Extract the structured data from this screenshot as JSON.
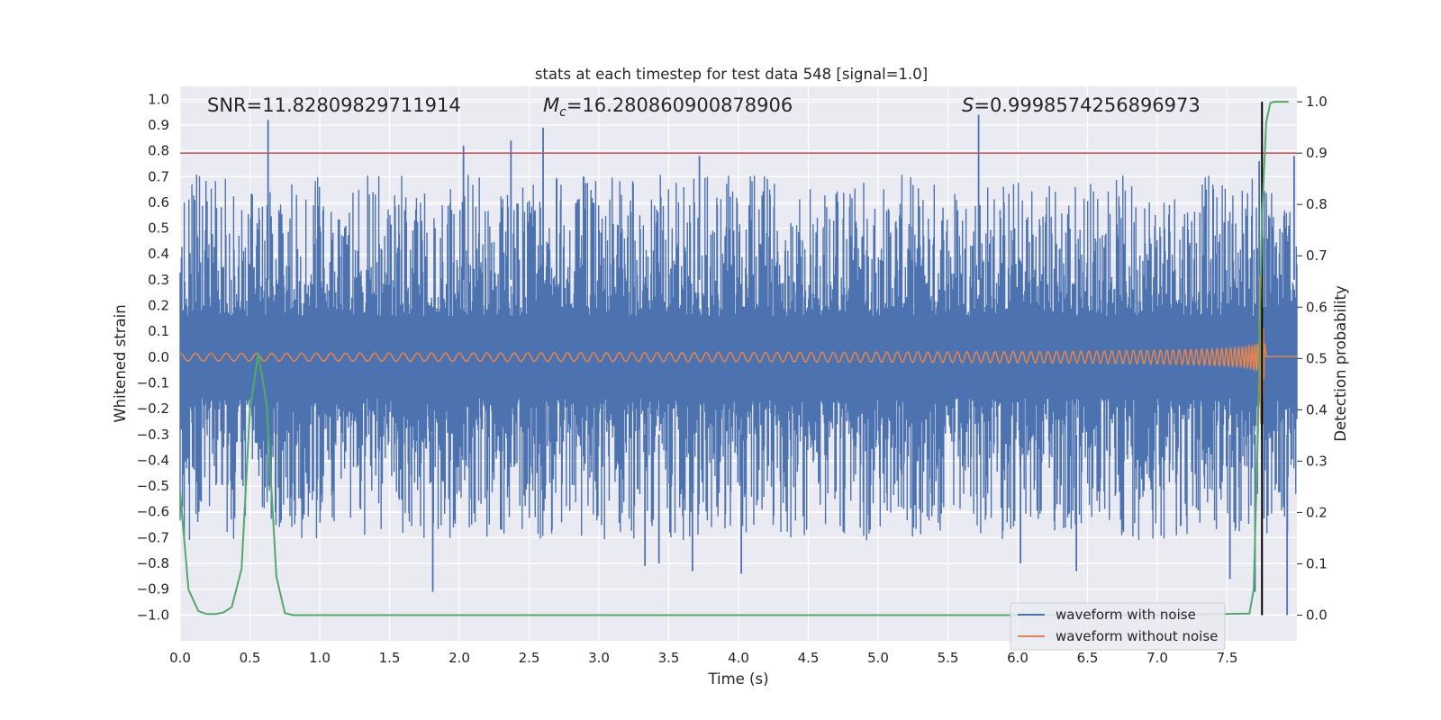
{
  "chart_data": {
    "type": "line",
    "title": "stats at each timestep for test data 548 [signal=1.0]",
    "xlabel": "Time (s)",
    "ylabel": "Whitened strain",
    "y2label": "Detection probability",
    "xlim": [
      0.0,
      8.0
    ],
    "ylim": [
      -1.1,
      1.05
    ],
    "y2lim": [
      -0.05,
      1.03
    ],
    "x_ticks": [
      "0.0",
      "0.5",
      "1.0",
      "1.5",
      "2.0",
      "2.5",
      "3.0",
      "3.5",
      "4.0",
      "4.5",
      "5.0",
      "5.5",
      "6.0",
      "6.5",
      "7.0",
      "7.5"
    ],
    "y_ticks": [
      "1.0",
      "0.9",
      "0.8",
      "0.7",
      "0.6",
      "0.5",
      "0.4",
      "0.3",
      "0.2",
      "0.1",
      "0.0",
      "-0.1",
      "-0.2",
      "-0.3",
      "-0.4",
      "-0.5",
      "-0.6",
      "-0.7",
      "-0.8",
      "-0.9",
      "-1.0"
    ],
    "y2_ticks": [
      "1.0",
      "0.9",
      "0.8",
      "0.7",
      "0.6",
      "0.5",
      "0.4",
      "0.3",
      "0.2",
      "0.1",
      "0.0"
    ],
    "grid": true,
    "legend_position": "lower-right",
    "annotations": {
      "snr": "SNR=11.82809829711914",
      "mc_symbol": "M",
      "mc_sub": "c",
      "mc_value": "=16.280860900878906",
      "s_symbol": "S",
      "s_value": "=0.9998574256896973"
    },
    "series": [
      {
        "name": "waveform with noise",
        "color": "#4c72b0",
        "axis": "left",
        "peaks": [
          {
            "x": 0.63,
            "y": 0.92
          },
          {
            "x": 2.03,
            "y": 0.82
          },
          {
            "x": 2.37,
            "y": 0.84
          },
          {
            "x": 2.6,
            "y": 0.89
          },
          {
            "x": 3.72,
            "y": 0.78
          },
          {
            "x": 5.72,
            "y": 0.94
          },
          {
            "x": 7.73,
            "y": 0.76
          },
          {
            "x": 7.98,
            "y": 0.78
          }
        ],
        "troughs": [
          {
            "x": 1.81,
            "y": -0.91
          },
          {
            "x": 3.33,
            "y": -0.81
          },
          {
            "x": 3.43,
            "y": -0.8
          },
          {
            "x": 3.67,
            "y": -0.83
          },
          {
            "x": 4.02,
            "y": -0.84
          },
          {
            "x": 6.02,
            "y": -0.8
          },
          {
            "x": 6.42,
            "y": -0.83
          },
          {
            "x": 7.52,
            "y": -0.86
          },
          {
            "x": 7.7,
            "y": -0.91
          },
          {
            "x": 7.93,
            "y": -1.0
          }
        ]
      },
      {
        "name": "waveform without noise",
        "color": "#dd8452",
        "axis": "left",
        "base_amplitude": 0.015,
        "final_amplitude": 0.35,
        "merger_time": 7.77
      },
      {
        "name": "detection probability",
        "color": "#55a868",
        "axis": "right",
        "x": [
          0.0,
          0.06,
          0.13,
          0.19,
          0.25,
          0.31,
          0.37,
          0.44,
          0.5,
          0.56,
          0.62,
          0.69,
          0.75,
          0.81,
          7.0,
          7.66,
          7.69,
          7.72,
          7.75,
          7.78,
          7.81,
          7.84,
          7.87,
          7.94
        ],
        "y": [
          0.24,
          0.05,
          0.008,
          0.002,
          0.002,
          0.005,
          0.016,
          0.09,
          0.4,
          0.51,
          0.41,
          0.075,
          0.004,
          0.0,
          0.0,
          0.003,
          0.05,
          0.35,
          0.78,
          0.96,
          0.998,
          1.0,
          1.0,
          1.0
        ]
      }
    ],
    "threshold": {
      "value_right_axis": 0.9,
      "color": "#c44e52"
    },
    "vertical_marker": {
      "x": 7.75,
      "color": "#000000"
    }
  },
  "legend": {
    "item_with_noise": "waveform with noise",
    "item_without_noise": "waveform without noise"
  }
}
